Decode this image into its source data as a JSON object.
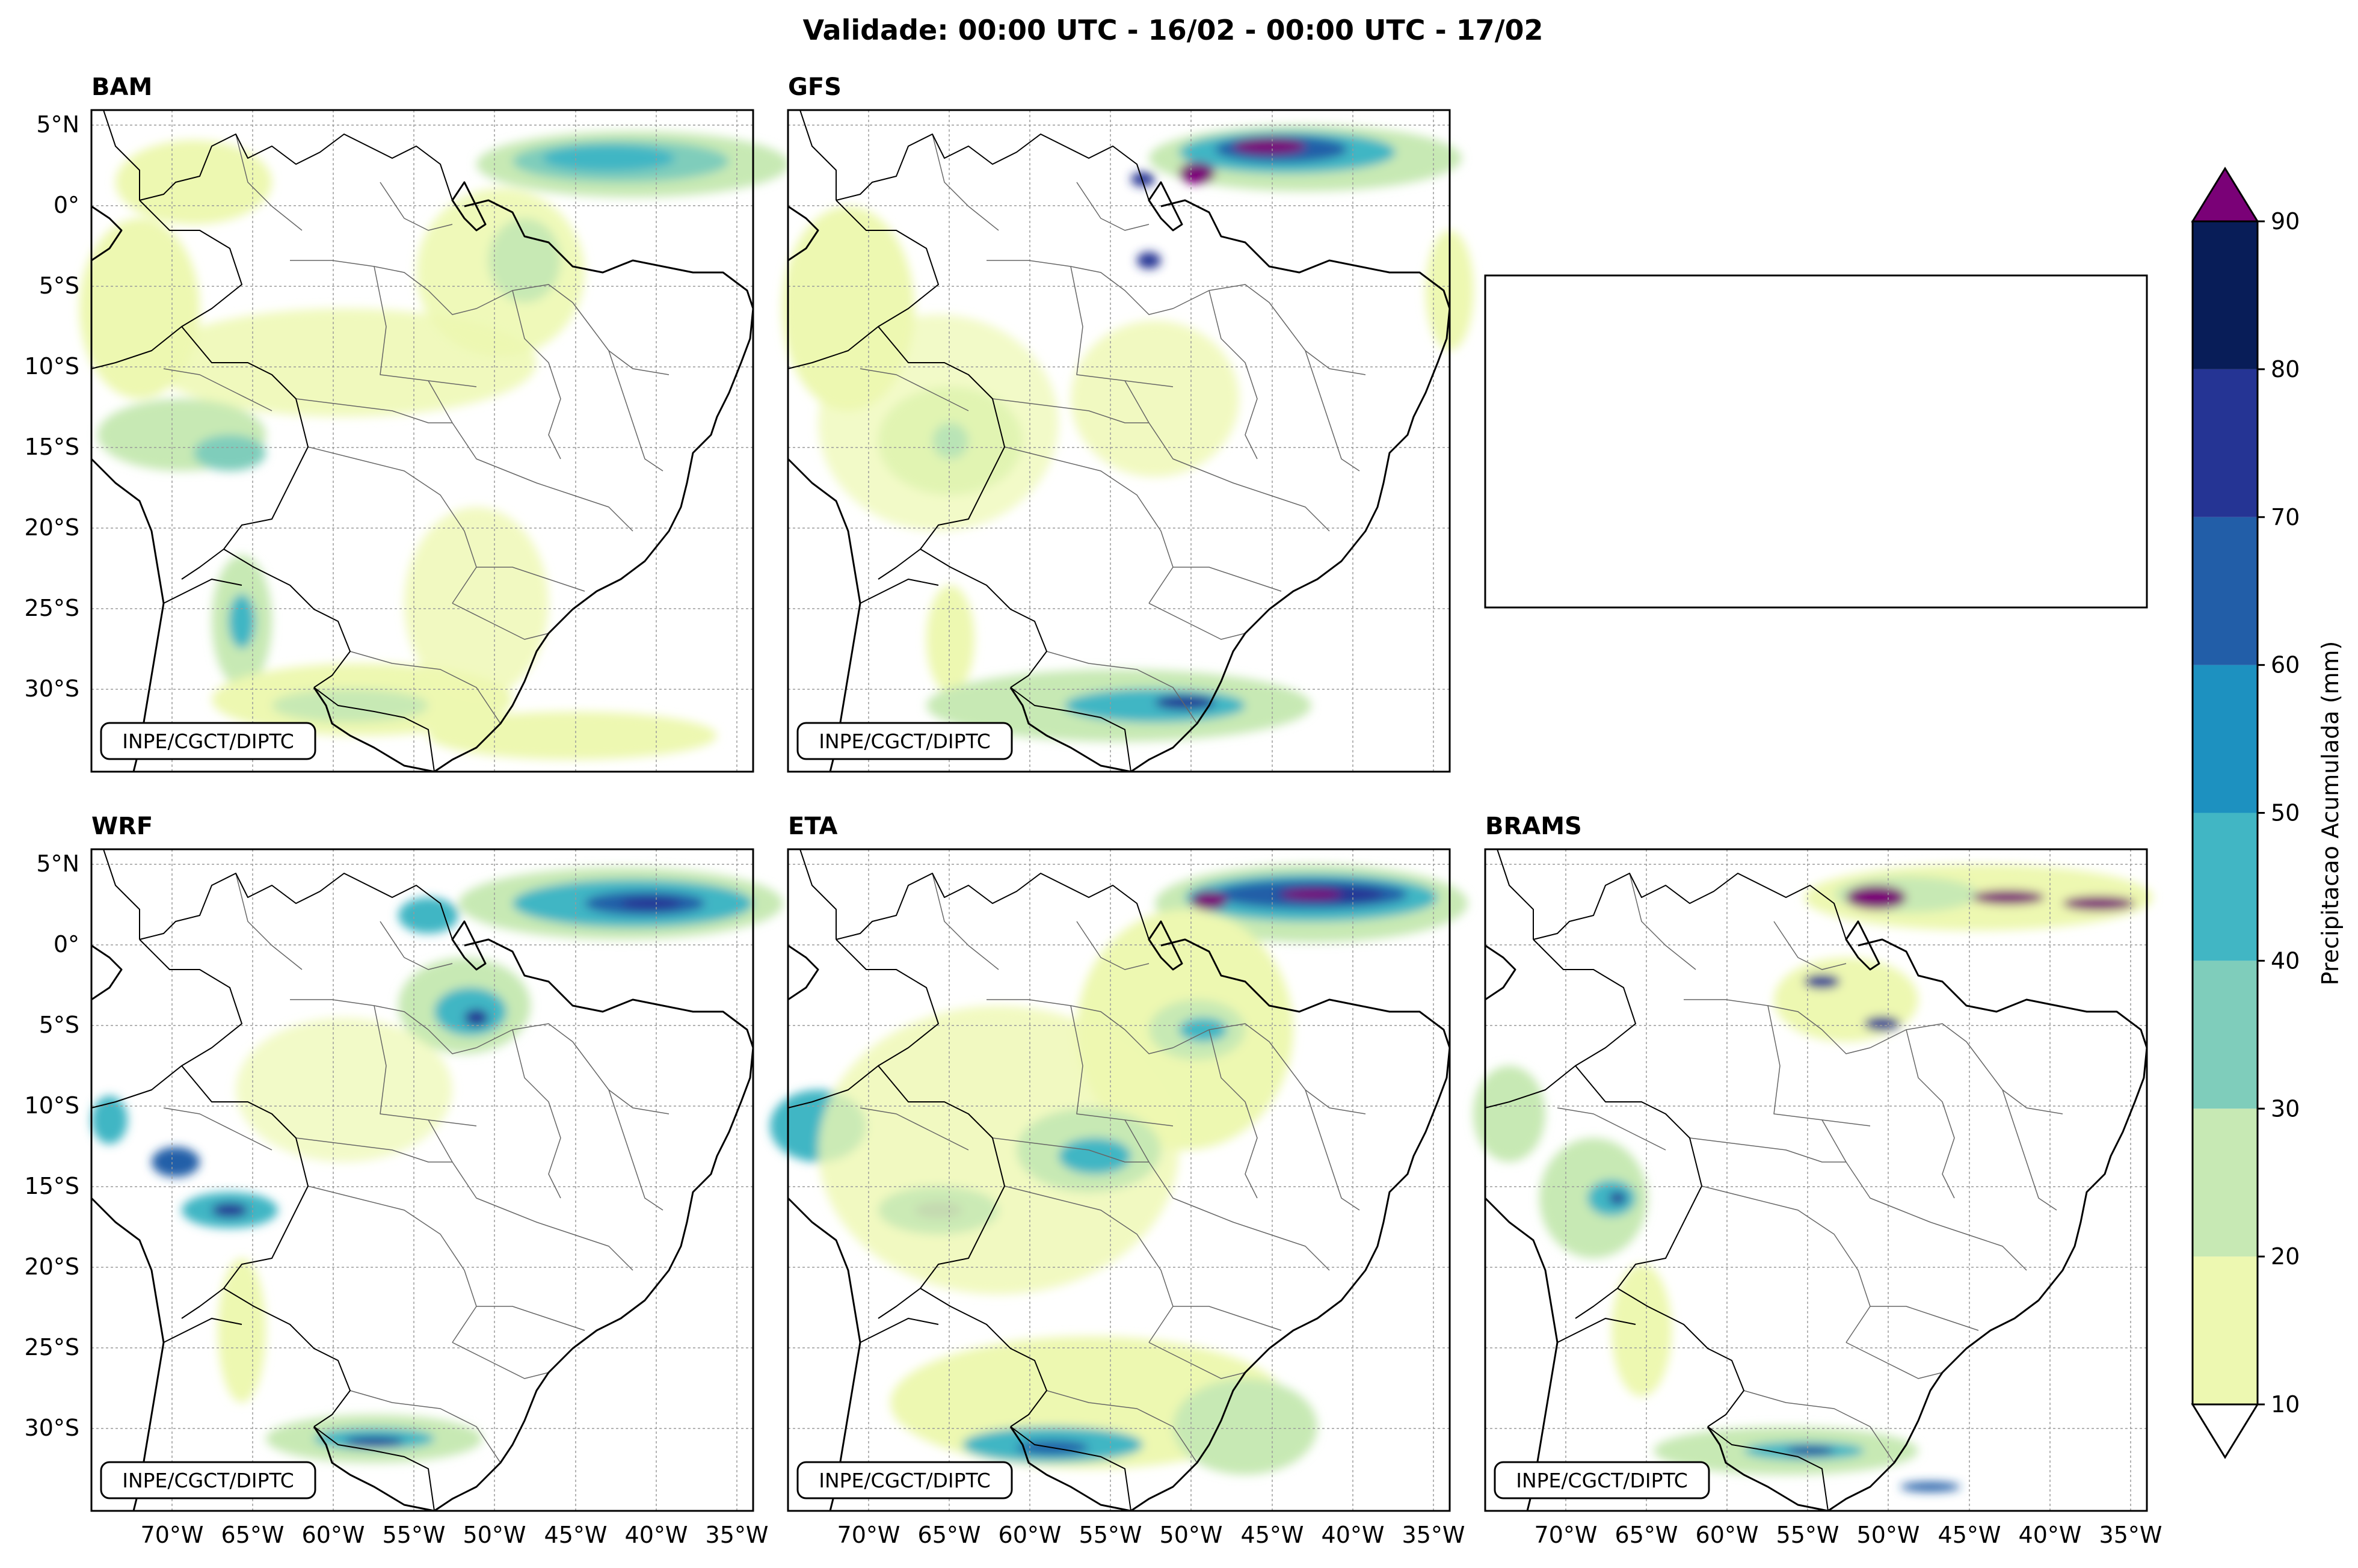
{
  "title": "Validade: 00:00 UTC - 16/02 - 00:00 UTC - 17/02",
  "credit": "INPE/CGCT/DIPTC",
  "lat_ticks": [
    "5°N",
    "0°",
    "5°S",
    "10°S",
    "15°S",
    "20°S",
    "25°S",
    "30°S"
  ],
  "lon_ticks": [
    "70°W",
    "65°W",
    "60°W",
    "55°W",
    "50°W",
    "45°W",
    "40°W",
    "35°W"
  ],
  "panels": [
    {
      "id": "bam",
      "label": "BAM"
    },
    {
      "id": "gfs",
      "label": "GFS"
    },
    {
      "id": "empty",
      "label": ""
    },
    {
      "id": "wrf",
      "label": "WRF"
    },
    {
      "id": "eta",
      "label": "ETA"
    },
    {
      "id": "brams",
      "label": "BRAMS"
    }
  ],
  "colorbar": {
    "label": "Precipitacao Acumulada (mm)",
    "levels": [
      10,
      20,
      30,
      40,
      50,
      60,
      70,
      80,
      90
    ],
    "level_labels": [
      "10",
      "20",
      "30",
      "40",
      "50",
      "60",
      "70",
      "80",
      "90"
    ],
    "colors": [
      "#edf8b1",
      "#c7e9b4",
      "#7fcdbb",
      "#41b6c4",
      "#1d91c0",
      "#225ea8",
      "#253494",
      "#081d58"
    ],
    "over_color": "#7a0177",
    "under_color": "#ffffff"
  },
  "map_extent": {
    "lon_min": -75,
    "lon_max": -34,
    "lat_min": -35,
    "lat_max": 6
  }
}
